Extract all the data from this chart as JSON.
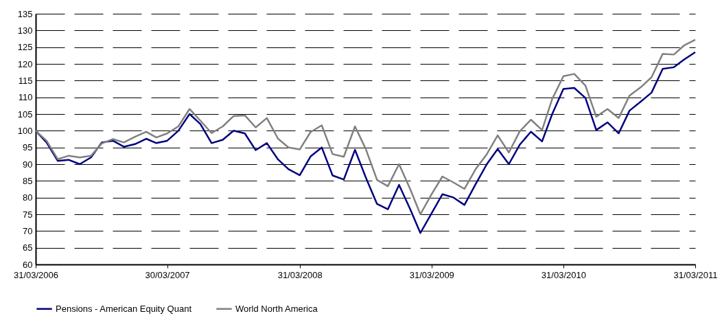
{
  "chart_data": {
    "type": "line",
    "x": [
      "2006-03-31",
      "2006-04-30",
      "2006-05-31",
      "2006-06-30",
      "2006-07-31",
      "2006-08-31",
      "2006-09-30",
      "2006-10-31",
      "2006-11-30",
      "2006-12-31",
      "2007-01-31",
      "2007-02-28",
      "2007-03-30",
      "2007-04-30",
      "2007-05-31",
      "2007-06-30",
      "2007-07-31",
      "2007-08-31",
      "2007-09-30",
      "2007-10-31",
      "2007-11-30",
      "2007-12-31",
      "2008-01-31",
      "2008-02-29",
      "2008-03-31",
      "2008-04-30",
      "2008-05-31",
      "2008-06-30",
      "2008-07-31",
      "2008-08-31",
      "2008-09-30",
      "2008-10-31",
      "2008-11-30",
      "2008-12-31",
      "2009-01-31",
      "2009-02-28",
      "2009-03-31",
      "2009-04-30",
      "2009-05-31",
      "2009-06-30",
      "2009-07-31",
      "2009-08-31",
      "2009-09-30",
      "2009-10-31",
      "2009-11-30",
      "2009-12-31",
      "2010-01-31",
      "2010-02-28",
      "2010-03-31",
      "2010-04-30",
      "2010-05-31",
      "2010-06-30",
      "2010-07-31",
      "2010-08-31",
      "2010-09-30",
      "2010-10-31",
      "2010-11-30",
      "2010-12-31",
      "2011-01-31",
      "2011-02-28",
      "2011-03-31"
    ],
    "series": [
      {
        "name": "Pensions - American Equity Quant",
        "color": "#000080",
        "values": [
          100,
          96.5,
          91,
          91.3,
          90,
          92,
          96.5,
          97,
          95.2,
          96,
          97.6,
          96.3,
          97,
          100,
          105,
          102,
          96.3,
          97.3,
          100,
          99.2,
          94.2,
          96.3,
          91.4,
          88.5,
          86.7,
          92.3,
          95,
          86.6,
          85.4,
          94.3,
          86,
          78.1,
          76.5,
          83.8,
          76.5,
          69.4,
          75.3,
          81,
          80,
          77.8,
          84,
          90,
          94.5,
          90,
          95.8,
          99.7,
          96.8,
          105,
          112.5,
          112.8,
          109.8,
          100.2,
          102.5,
          99.2,
          106,
          108.7,
          111.4,
          118.5,
          119,
          121.3,
          123.5
        ]
      },
      {
        "name": "World North America",
        "color": "#808080",
        "values": [
          100,
          97,
          91.5,
          92.5,
          92,
          92.5,
          96.2,
          97.5,
          96.5,
          98.2,
          99.7,
          98,
          99.2,
          101.3,
          106.5,
          103,
          99.3,
          101.3,
          104.4,
          104.6,
          101,
          103.8,
          97.6,
          95,
          94.4,
          99.6,
          101.6,
          93,
          92.2,
          101.3,
          94.5,
          85.3,
          83.4,
          90,
          82.5,
          75,
          81,
          86.3,
          84.5,
          82.6,
          88.5,
          93,
          98.6,
          93.5,
          99.8,
          103.3,
          100.2,
          109.5,
          116.3,
          117,
          113.5,
          104.2,
          106.5,
          103.8,
          110.5,
          113,
          116,
          123,
          122.8,
          125.5,
          127.2
        ]
      }
    ],
    "xlim": [
      "2006-03-31",
      "2011-03-31"
    ],
    "xticks": [
      {
        "value": "2006-03-31",
        "label": "31/03/2006"
      },
      {
        "value": "2007-03-30",
        "label": "30/03/2007"
      },
      {
        "value": "2008-03-31",
        "label": "31/03/2008"
      },
      {
        "value": "2009-03-31",
        "label": "31/03/2009"
      },
      {
        "value": "2010-03-31",
        "label": "31/03/2010"
      },
      {
        "value": "2011-03-31",
        "label": "31/03/2011"
      }
    ],
    "ylim": [
      60,
      135
    ],
    "yticks": [
      60,
      65,
      70,
      75,
      80,
      85,
      90,
      95,
      100,
      105,
      110,
      115,
      120,
      125,
      130,
      135
    ],
    "grid": "y",
    "legend": "bottom",
    "marker": "none",
    "line_style": "solid"
  }
}
